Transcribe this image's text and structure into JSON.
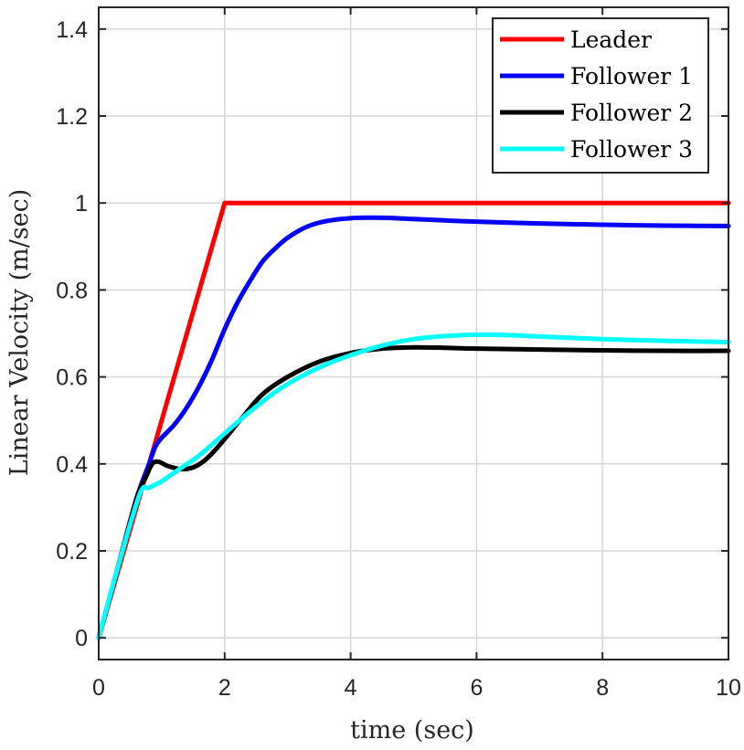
{
  "chart_data": {
    "type": "line",
    "title": "",
    "xlabel": "time (sec)",
    "ylabel": "Linear Velocity (m/sec)",
    "xlim": [
      0,
      10
    ],
    "ylim": [
      -0.05,
      1.45
    ],
    "xticks": [
      0,
      2,
      4,
      6,
      8,
      10
    ],
    "yticks": [
      0,
      0.2,
      0.4,
      0.6,
      0.8,
      1,
      1.2,
      1.4
    ],
    "xtick_labels": [
      "0",
      "2",
      "4",
      "6",
      "8",
      "10"
    ],
    "ytick_labels": [
      "0",
      "0.2",
      "0.4",
      "0.6",
      "0.8",
      "1",
      "1.2",
      "1.4"
    ],
    "grid": true,
    "legend_position": "top-right",
    "series": [
      {
        "name": "Leader",
        "color": "#ff0000",
        "x": [
          0,
          2,
          10
        ],
        "y": [
          0,
          1,
          1
        ]
      },
      {
        "name": "Follower 1",
        "color": "#0000ff",
        "x": [
          0,
          0.3,
          0.6,
          0.8,
          0.9,
          1.0,
          1.2,
          1.4,
          1.6,
          1.8,
          2.0,
          2.2,
          2.4,
          2.6,
          2.8,
          3.0,
          3.3,
          3.6,
          4.0,
          4.5,
          5.0,
          5.5,
          6.0,
          7.0,
          8.0,
          9.0,
          10.0
        ],
        "y": [
          0,
          0.16,
          0.32,
          0.4,
          0.44,
          0.46,
          0.49,
          0.53,
          0.58,
          0.64,
          0.71,
          0.77,
          0.82,
          0.865,
          0.895,
          0.92,
          0.945,
          0.958,
          0.965,
          0.966,
          0.963,
          0.96,
          0.957,
          0.953,
          0.95,
          0.948,
          0.947
        ]
      },
      {
        "name": "Follower 2",
        "color": "#000000",
        "x": [
          0,
          0.3,
          0.6,
          0.75,
          0.85,
          0.95,
          1.1,
          1.3,
          1.5,
          1.7,
          1.9,
          2.1,
          2.3,
          2.6,
          3.0,
          3.5,
          4.0,
          4.5,
          5.0,
          5.5,
          6.0,
          7.0,
          8.0,
          9.0,
          10.0
        ],
        "y": [
          0,
          0.16,
          0.32,
          0.37,
          0.4,
          0.405,
          0.395,
          0.388,
          0.392,
          0.41,
          0.44,
          0.475,
          0.51,
          0.56,
          0.6,
          0.635,
          0.655,
          0.665,
          0.668,
          0.667,
          0.665,
          0.663,
          0.661,
          0.66,
          0.66
        ]
      },
      {
        "name": "Follower 3",
        "color": "#00ffff",
        "x": [
          0,
          0.3,
          0.65,
          0.8,
          1.0,
          1.3,
          1.6,
          2.0,
          2.4,
          2.8,
          3.2,
          3.6,
          4.0,
          4.5,
          5.0,
          5.5,
          6.0,
          6.5,
          7.0,
          8.0,
          9.0,
          10.0
        ],
        "y": [
          0,
          0.16,
          0.33,
          0.345,
          0.36,
          0.39,
          0.42,
          0.47,
          0.52,
          0.565,
          0.6,
          0.628,
          0.65,
          0.672,
          0.687,
          0.694,
          0.697,
          0.696,
          0.693,
          0.687,
          0.683,
          0.68
        ]
      }
    ]
  }
}
